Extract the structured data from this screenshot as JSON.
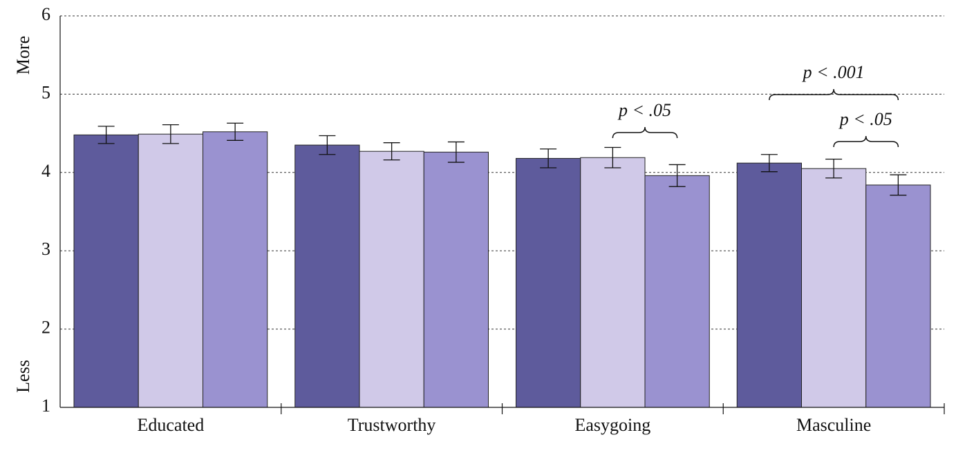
{
  "chart_data": {
    "type": "bar",
    "categories": [
      "Educated",
      "Trustworthy",
      "Easygoing",
      "Masculine"
    ],
    "series": [
      {
        "color": "#5e5b9c",
        "values": [
          4.48,
          4.35,
          4.18,
          4.12
        ],
        "errors": [
          0.11,
          0.12,
          0.12,
          0.11
        ]
      },
      {
        "color": "#d0c9e8",
        "values": [
          4.49,
          4.27,
          4.19,
          4.05
        ],
        "errors": [
          0.12,
          0.11,
          0.13,
          0.12
        ]
      },
      {
        "color": "#9a92d0",
        "values": [
          4.52,
          4.26,
          3.96,
          3.84
        ],
        "errors": [
          0.11,
          0.13,
          0.14,
          0.13
        ]
      }
    ],
    "ylim": [
      1,
      6
    ],
    "yticks": [
      1,
      2,
      3,
      4,
      5,
      6
    ],
    "grid": true,
    "y_top_label": "More",
    "y_bottom_label": "Less",
    "annotations": [
      "p < .05",
      "p < .001",
      "p < .05"
    ]
  }
}
